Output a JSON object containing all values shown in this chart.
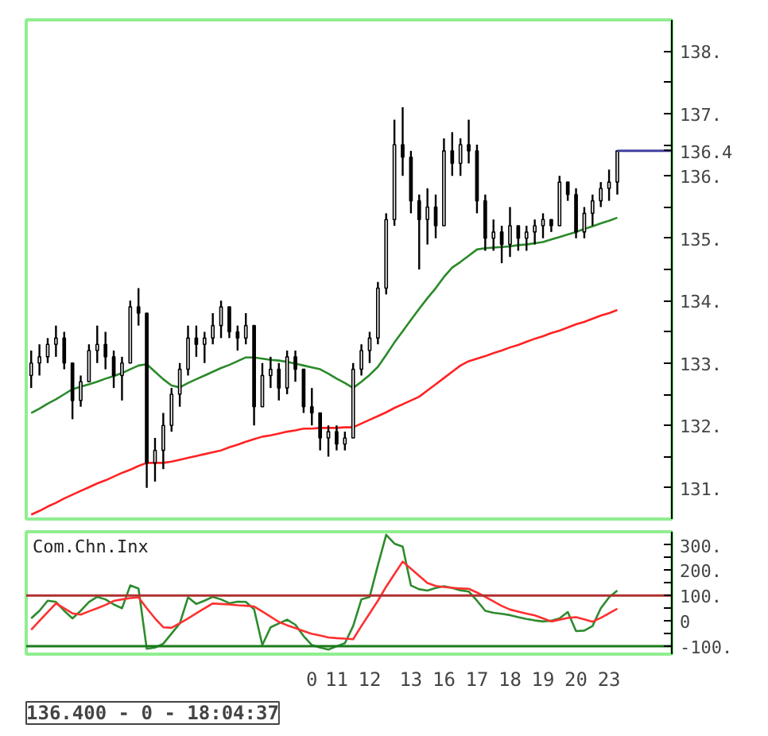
{
  "chart_data": [
    {
      "type": "candlestick",
      "categories": [
        null,
        null,
        null,
        null,
        null,
        null,
        null,
        null,
        null,
        null,
        null,
        null,
        null,
        null,
        null,
        null,
        null,
        null,
        null,
        null,
        null,
        null,
        null,
        null,
        null,
        null,
        null,
        null,
        null,
        null,
        null,
        null,
        null,
        null,
        "0",
        null,
        null,
        "11",
        null,
        null,
        null,
        "12",
        null,
        null,
        null,
        null,
        "13",
        null,
        null,
        null,
        "16",
        null,
        null,
        null,
        "17",
        null,
        null,
        null,
        "18",
        null,
        null,
        null,
        "19",
        null,
        null,
        null,
        "20",
        null,
        null,
        null,
        "23",
        null
      ],
      "ohlc": [
        [
          132.8,
          133.2,
          132.6,
          133.0
        ],
        [
          133.0,
          133.3,
          132.8,
          133.1
        ],
        [
          133.1,
          133.4,
          133.0,
          133.3
        ],
        [
          133.3,
          133.6,
          133.1,
          133.4
        ],
        [
          133.4,
          133.5,
          132.9,
          133.0
        ],
        [
          133.0,
          133.0,
          132.1,
          132.4
        ],
        [
          132.4,
          132.8,
          132.3,
          132.7
        ],
        [
          132.7,
          133.3,
          132.7,
          133.2
        ],
        [
          133.2,
          133.6,
          133.0,
          133.3
        ],
        [
          133.3,
          133.5,
          132.9,
          133.1
        ],
        [
          133.1,
          133.2,
          132.6,
          132.8
        ],
        [
          132.8,
          133.1,
          132.4,
          133.0
        ],
        [
          133.0,
          134.0,
          133.0,
          133.9
        ],
        [
          133.9,
          134.2,
          133.6,
          133.8
        ],
        [
          133.8,
          133.8,
          131.0,
          131.4
        ],
        [
          131.4,
          131.8,
          131.1,
          131.6
        ],
        [
          131.6,
          132.2,
          131.3,
          132.0
        ],
        [
          132.0,
          132.6,
          131.9,
          132.5
        ],
        [
          132.5,
          133.0,
          132.3,
          132.9
        ],
        [
          132.9,
          133.6,
          132.8,
          133.4
        ],
        [
          133.4,
          133.6,
          133.1,
          133.3
        ],
        [
          133.3,
          133.5,
          133.0,
          133.4
        ],
        [
          133.4,
          133.8,
          133.3,
          133.6
        ],
        [
          133.6,
          134.0,
          133.4,
          133.9
        ],
        [
          133.9,
          133.9,
          133.4,
          133.5
        ],
        [
          133.5,
          133.6,
          133.2,
          133.4
        ],
        [
          133.4,
          133.8,
          133.3,
          133.6
        ],
        [
          133.6,
          133.6,
          132.0,
          132.3
        ],
        [
          132.3,
          133.0,
          132.3,
          132.8
        ],
        [
          132.8,
          133.1,
          132.6,
          132.9
        ],
        [
          132.9,
          133.0,
          132.4,
          132.6
        ],
        [
          132.6,
          133.2,
          132.5,
          133.1
        ],
        [
          133.1,
          133.2,
          132.7,
          132.9
        ],
        [
          132.9,
          132.9,
          132.2,
          132.3
        ],
        [
          132.3,
          132.6,
          132.0,
          132.2
        ],
        [
          132.2,
          132.2,
          131.6,
          131.8
        ],
        [
          131.8,
          132.0,
          131.5,
          131.9
        ],
        [
          131.9,
          132.0,
          131.6,
          131.7
        ],
        [
          131.7,
          131.9,
          131.6,
          131.8
        ],
        [
          131.8,
          133.0,
          131.8,
          132.9
        ],
        [
          132.9,
          133.3,
          132.8,
          133.2
        ],
        [
          133.2,
          133.5,
          133.0,
          133.4
        ],
        [
          133.4,
          134.3,
          133.3,
          134.2
        ],
        [
          134.2,
          135.4,
          134.1,
          135.3
        ],
        [
          135.3,
          136.9,
          135.2,
          136.5
        ],
        [
          136.5,
          137.1,
          136.0,
          136.3
        ],
        [
          136.3,
          136.4,
          135.4,
          135.6
        ],
        [
          135.6,
          135.7,
          134.5,
          135.3
        ],
        [
          135.3,
          135.8,
          134.9,
          135.5
        ],
        [
          135.5,
          135.7,
          135.0,
          135.2
        ],
        [
          135.2,
          136.6,
          135.2,
          136.4
        ],
        [
          136.4,
          136.7,
          136.0,
          136.2
        ],
        [
          136.2,
          136.6,
          136.0,
          136.5
        ],
        [
          136.5,
          136.9,
          136.2,
          136.4
        ],
        [
          136.4,
          136.5,
          135.4,
          135.6
        ],
        [
          135.6,
          135.7,
          134.8,
          135.0
        ],
        [
          135.0,
          135.3,
          134.8,
          135.1
        ],
        [
          135.1,
          135.2,
          134.6,
          134.9
        ],
        [
          134.9,
          135.5,
          134.7,
          135.2
        ],
        [
          135.2,
          135.2,
          134.8,
          135.0
        ],
        [
          135.0,
          135.2,
          134.8,
          135.1
        ],
        [
          135.1,
          135.3,
          134.9,
          135.2
        ],
        [
          135.2,
          135.4,
          135.0,
          135.3
        ],
        [
          135.3,
          135.3,
          135.1,
          135.2
        ],
        [
          135.2,
          136.0,
          135.2,
          135.9
        ],
        [
          135.9,
          135.9,
          135.6,
          135.7
        ],
        [
          135.7,
          135.8,
          135.0,
          135.1
        ],
        [
          135.1,
          135.5,
          135.0,
          135.4
        ],
        [
          135.4,
          135.7,
          135.2,
          135.6
        ],
        [
          135.6,
          135.9,
          135.5,
          135.8
        ],
        [
          135.8,
          136.1,
          135.6,
          135.9
        ],
        [
          135.9,
          136.4,
          135.7,
          136.4
        ]
      ],
      "series": [
        {
          "type": "line",
          "color": "#2a8a2a",
          "values": [
            132.2,
            132.27,
            132.35,
            132.42,
            132.5,
            132.58,
            132.62,
            132.66,
            132.7,
            132.75,
            132.79,
            132.84,
            132.9,
            132.96,
            132.98,
            132.86,
            132.74,
            132.64,
            132.61,
            132.68,
            132.74,
            132.8,
            132.86,
            132.92,
            132.97,
            133.03,
            133.09,
            133.09,
            133.07,
            133.05,
            133.04,
            133.02,
            132.99,
            132.96,
            132.93,
            132.9,
            132.83,
            132.75,
            132.68,
            132.6,
            132.7,
            132.81,
            132.94,
            133.13,
            133.33,
            133.51,
            133.69,
            133.87,
            134.04,
            134.2,
            134.38,
            134.53,
            134.62,
            134.72,
            134.82,
            134.84,
            134.85,
            134.86,
            134.87,
            134.89,
            134.9,
            134.92,
            134.94,
            134.98,
            135.02,
            135.06,
            135.1,
            135.15,
            135.19,
            135.24,
            135.28,
            135.33
          ]
        },
        {
          "type": "line",
          "color": "#ff2222",
          "values": [
            130.57,
            130.63,
            130.7,
            130.76,
            130.83,
            130.89,
            130.95,
            131.01,
            131.07,
            131.12,
            131.18,
            131.24,
            131.29,
            131.35,
            131.4,
            131.4,
            131.4,
            131.42,
            131.45,
            131.48,
            131.51,
            131.54,
            131.57,
            131.6,
            131.65,
            131.69,
            131.74,
            131.78,
            131.82,
            131.84,
            131.87,
            131.9,
            131.92,
            131.95,
            131.95,
            131.96,
            131.96,
            131.96,
            131.97,
            131.97,
            132.03,
            132.09,
            132.15,
            132.21,
            132.28,
            132.34,
            132.4,
            132.46,
            132.56,
            132.66,
            132.76,
            132.86,
            132.96,
            133.03,
            133.07,
            133.11,
            133.16,
            133.2,
            133.25,
            133.29,
            133.34,
            133.39,
            133.43,
            133.48,
            133.52,
            133.57,
            133.62,
            133.66,
            133.71,
            133.76,
            133.8,
            133.85
          ]
        }
      ],
      "ylim": [
        130.5,
        138.5
      ],
      "yticks": [
        {
          "value": 131,
          "label": "131."
        },
        {
          "value": 132,
          "label": "132."
        },
        {
          "value": 133,
          "label": "133."
        },
        {
          "value": 134,
          "label": "134."
        },
        {
          "value": 135,
          "label": "135."
        },
        {
          "value": 136,
          "label": "136."
        },
        {
          "value": 137,
          "label": "137."
        },
        {
          "value": 138,
          "label": "138."
        }
      ],
      "ref_lines": [
        {
          "axis": "y",
          "value": 136.4,
          "label": "136.4",
          "color": "#4040a0"
        }
      ],
      "tick_labels": "y"
    },
    {
      "type": "line",
      "title": "Com.Chn.Inx",
      "categories": [
        null,
        null,
        null,
        null,
        null,
        null,
        null,
        null,
        null,
        null,
        null,
        null,
        null,
        null,
        null,
        null,
        null,
        null,
        null,
        null,
        null,
        null,
        null,
        null,
        null,
        null,
        null,
        null,
        null,
        null,
        null,
        null,
        null,
        null,
        "0",
        null,
        null,
        "11",
        null,
        null,
        null,
        "12",
        null,
        null,
        null,
        null,
        "13",
        null,
        null,
        null,
        "16",
        null,
        null,
        null,
        "17",
        null,
        null,
        null,
        "18",
        null,
        null,
        null,
        "19",
        null,
        null,
        null,
        "20",
        null,
        null,
        null,
        "23",
        null
      ],
      "series": [
        {
          "color": "#2e8b2e",
          "values": [
            10,
            40,
            80,
            75,
            40,
            10,
            40,
            75,
            95,
            85,
            65,
            50,
            140,
            128,
            -110,
            -105,
            -90,
            -50,
            -10,
            93,
            67,
            80,
            95,
            85,
            70,
            76,
            75,
            46,
            -95,
            -25,
            -10,
            5,
            -15,
            -60,
            -95,
            -105,
            -113,
            -100,
            -88,
            -20,
            85,
            95,
            220,
            340,
            305,
            293,
            140,
            125,
            120,
            130,
            137,
            130,
            121,
            116,
            80,
            40,
            32,
            28,
            23,
            15,
            8,
            2,
            -2,
            1,
            10,
            35,
            -40,
            -38,
            -20,
            50,
            93,
            120
          ]
        },
        {
          "color": "#ff3030",
          "values": [
            -35,
            0,
            35,
            69,
            50,
            30,
            25,
            38,
            50,
            63,
            79,
            85,
            90,
            93,
            50,
            10,
            -25,
            -27,
            -9,
            10,
            30,
            50,
            69,
            67,
            65,
            62,
            60,
            57,
            37,
            17,
            -4,
            -17,
            -28,
            -40,
            -51,
            -57,
            -65,
            -68,
            -70,
            -72,
            -20,
            30,
            80,
            135,
            185,
            234,
            206,
            178,
            150,
            138,
            134,
            131,
            128,
            127,
            112,
            95,
            77,
            59,
            45,
            37,
            29,
            22,
            10,
            -2,
            5,
            12,
            15,
            6,
            -3,
            12,
            30,
            48
          ]
        }
      ],
      "ylim": [
        -131,
        352
      ],
      "yticks": [
        {
          "value": -100,
          "label": "-100."
        },
        {
          "value": 0,
          "label": "0"
        },
        {
          "value": 100,
          "label": "100."
        },
        {
          "value": 200,
          "label": "200."
        },
        {
          "value": 300,
          "label": "300."
        }
      ],
      "ref_lines": [
        {
          "axis": "y",
          "value": 100,
          "color": "#b03030"
        },
        {
          "axis": "y",
          "value": -100,
          "color": "#1a7a1a"
        }
      ],
      "annotations": [
        "136.400 - 0 - 18:04:37"
      ]
    }
  ]
}
